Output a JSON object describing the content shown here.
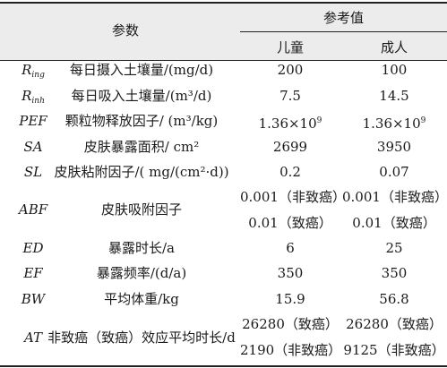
{
  "header": {
    "param": "参数",
    "reference": "参考值",
    "child": "儿童",
    "adult": "成人"
  },
  "rows": [
    {
      "sym_main": "R",
      "sym_sub": "ing",
      "desc": "每日摄入土壤量/(mg/d)",
      "child": "200",
      "adult": "100"
    },
    {
      "sym_main": "R",
      "sym_sub": "inh",
      "desc": "每日吸入土壤量/(m³/d)",
      "child": "7.5",
      "adult": "14.5"
    },
    {
      "sym": "PEF",
      "desc": "颗粒物释放因子/ (m³/kg)",
      "child_base": "1.36×10",
      "child_exp": "9",
      "adult_base": "1.36×10",
      "adult_exp": "9"
    },
    {
      "sym": "SA",
      "desc": "皮肤暴露面积/ cm²",
      "child": "2699",
      "adult": "3950"
    },
    {
      "sym": "SL",
      "desc": "皮肤粘附因子/( mg/(cm²·d))",
      "child": "0.2",
      "adult": "0.07"
    },
    {
      "sym": "ABF",
      "desc": "皮肤吸附因子",
      "child_1": "0.001（非致癌）",
      "adult_1": "0.001（非致癌）",
      "child_2": "0.01（致癌）",
      "adult_2": "0.01（致癌）"
    },
    {
      "sym": "ED",
      "desc": "暴露时长/a",
      "child": "6",
      "adult": "25"
    },
    {
      "sym": "EF",
      "desc": "暴露频率/(d/a)",
      "child": "350",
      "adult": "350"
    },
    {
      "sym": "BW",
      "desc": "平均体重/kg",
      "child": "15.9",
      "adult": "56.8"
    },
    {
      "sym": "AT",
      "desc": "非致癌（致癌）效应平均时长/d",
      "child_1": "26280（致癌）",
      "adult_1": "26280（致癌）",
      "child_2": "2190（非致癌）",
      "adult_2": "9125（非致癌）"
    }
  ]
}
